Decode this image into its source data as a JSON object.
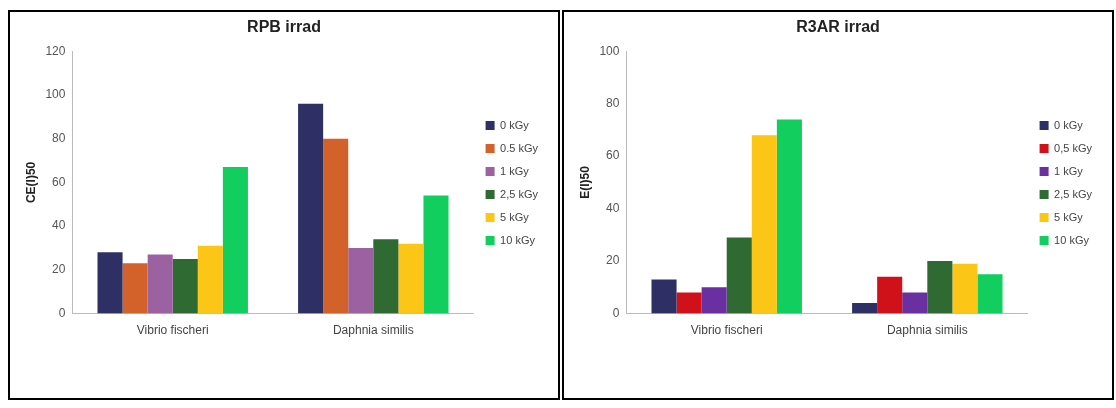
{
  "chart_data": [
    {
      "type": "bar",
      "title": "RPB irrad",
      "ylabel": "CE(I)50",
      "categories": [
        "Vibrio fischeri",
        "Daphnia similis"
      ],
      "ylim": [
        0,
        120
      ],
      "yticks": [
        0,
        20,
        40,
        60,
        80,
        100,
        120
      ],
      "grid": false,
      "legend": "right",
      "series": [
        {
          "name": "0 kGy",
          "color": "#2e3065",
          "values": [
            28,
            96
          ]
        },
        {
          "name": "0.5 kGy",
          "color": "#d2622a",
          "values": [
            23,
            80
          ]
        },
        {
          "name": "1 kGy",
          "color": "#9b61a0",
          "values": [
            27,
            30
          ]
        },
        {
          "name": "2,5 kGy",
          "color": "#2e6a32",
          "values": [
            25,
            34
          ]
        },
        {
          "name": "5 kGy",
          "color": "#fcc617",
          "values": [
            31,
            32
          ]
        },
        {
          "name": "10 kGy",
          "color": "#12ce5e",
          "values": [
            67,
            54
          ]
        }
      ]
    },
    {
      "type": "bar",
      "title": "R3AR irrad",
      "ylabel": "E(I)50",
      "categories": [
        "Vibrio fischeri",
        "Daphnia similis"
      ],
      "ylim": [
        0,
        100
      ],
      "yticks": [
        0,
        20,
        40,
        60,
        80,
        100
      ],
      "grid": false,
      "legend": "right",
      "series": [
        {
          "name": "0 kGy",
          "color": "#2e3065",
          "values": [
            13,
            4
          ]
        },
        {
          "name": "0,5 kGy",
          "color": "#d0111a",
          "values": [
            8,
            14
          ]
        },
        {
          "name": "1 kGy",
          "color": "#6a2fa0",
          "values": [
            10,
            8
          ]
        },
        {
          "name": "2,5 kGy",
          "color": "#2e6a32",
          "values": [
            29,
            20
          ]
        },
        {
          "name": "5 kGy",
          "color": "#fcc617",
          "values": [
            68,
            19
          ]
        },
        {
          "name": "10 kGy",
          "color": "#12ce5e",
          "values": [
            74,
            15
          ]
        }
      ]
    }
  ]
}
